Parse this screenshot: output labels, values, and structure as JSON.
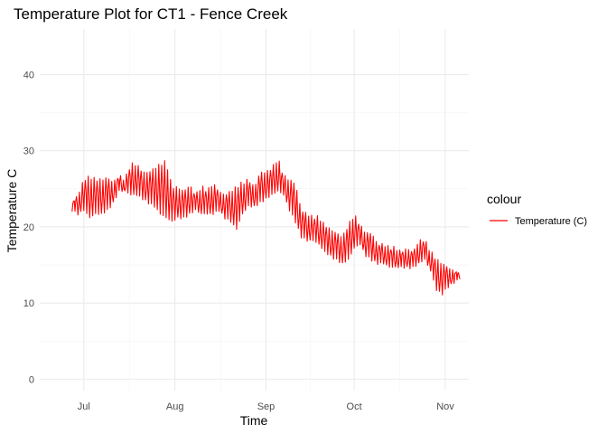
{
  "chart_data": {
    "type": "line",
    "title": "Temperature Plot for CT1 - Fence Creek",
    "xlabel": "Time",
    "ylabel": "Temperature C",
    "x_ticks": [
      {
        "date": "2021-07-01",
        "label": "Jul"
      },
      {
        "date": "2021-08-01",
        "label": "Aug"
      },
      {
        "date": "2021-09-01",
        "label": "Sep"
      },
      {
        "date": "2021-10-01",
        "label": "Oct"
      },
      {
        "date": "2021-11-01",
        "label": "Nov"
      }
    ],
    "xlim": [
      "2021-06-16",
      "2021-11-09"
    ],
    "y_ticks": [
      0,
      10,
      20,
      30,
      40
    ],
    "ylim": [
      -1.5,
      46
    ],
    "grid": true,
    "legend": {
      "title": "colour",
      "position": "right",
      "entries": [
        "Temperature (C)"
      ]
    },
    "series": [
      {
        "name": "Temperature (C)",
        "color": "#ff0000",
        "x": [
          "2021-06-27",
          "2021-06-29",
          "2021-07-01",
          "2021-07-03",
          "2021-07-05",
          "2021-07-07",
          "2021-07-09",
          "2021-07-11",
          "2021-07-13",
          "2021-07-15",
          "2021-07-17",
          "2021-07-19",
          "2021-07-21",
          "2021-07-23",
          "2021-07-25",
          "2021-07-27",
          "2021-07-29",
          "2021-07-31",
          "2021-08-02",
          "2021-08-04",
          "2021-08-06",
          "2021-08-08",
          "2021-08-10",
          "2021-08-12",
          "2021-08-14",
          "2021-08-16",
          "2021-08-18",
          "2021-08-20",
          "2021-08-22",
          "2021-08-24",
          "2021-08-26",
          "2021-08-28",
          "2021-08-30",
          "2021-09-01",
          "2021-09-03",
          "2021-09-05",
          "2021-09-07",
          "2021-09-09",
          "2021-09-11",
          "2021-09-13",
          "2021-09-15",
          "2021-09-17",
          "2021-09-19",
          "2021-09-21",
          "2021-09-23",
          "2021-09-25",
          "2021-09-27",
          "2021-09-29",
          "2021-10-01",
          "2021-10-03",
          "2021-10-05",
          "2021-10-07",
          "2021-10-09",
          "2021-10-11",
          "2021-10-13",
          "2021-10-15",
          "2021-10-17",
          "2021-10-19",
          "2021-10-21",
          "2021-10-23",
          "2021-10-25",
          "2021-10-27",
          "2021-10-29",
          "2021-10-31",
          "2021-11-02",
          "2021-11-04",
          "2021-11-06"
        ],
        "high": [
          23.5,
          24.5,
          26.5,
          26.8,
          26.5,
          26.5,
          26.8,
          26.2,
          27.0,
          26.5,
          28.5,
          28.5,
          27.5,
          27.5,
          28.0,
          28.5,
          28.8,
          25.5,
          25.5,
          25.0,
          25.8,
          24.5,
          25.5,
          25.0,
          26.0,
          25.0,
          24.5,
          25.0,
          25.5,
          26.0,
          26.5,
          25.5,
          27.5,
          27.5,
          28.0,
          29.2,
          27.0,
          26.5,
          26.0,
          22.5,
          22.0,
          21.5,
          21.5,
          20.5,
          20.0,
          19.5,
          19.0,
          20.5,
          21.8,
          20.5,
          19.5,
          19.5,
          18.0,
          18.0,
          17.5,
          17.5,
          17.0,
          17.5,
          17.0,
          18.5,
          18.5,
          17.0,
          16.0,
          15.5,
          15.0,
          14.5,
          14.0
        ],
        "low": [
          22.0,
          21.5,
          22.0,
          21.0,
          21.5,
          21.5,
          22.0,
          23.0,
          24.5,
          24.5,
          24.0,
          24.0,
          23.5,
          23.0,
          22.5,
          21.5,
          21.0,
          20.5,
          21.0,
          21.0,
          21.5,
          22.0,
          21.5,
          21.5,
          21.5,
          22.0,
          21.0,
          20.5,
          19.5,
          21.5,
          22.5,
          22.5,
          23.0,
          23.5,
          24.0,
          24.5,
          24.0,
          22.0,
          20.5,
          18.5,
          18.0,
          18.0,
          17.5,
          16.5,
          16.0,
          15.5,
          15.0,
          15.5,
          17.0,
          17.5,
          16.0,
          15.5,
          15.0,
          15.0,
          14.5,
          14.5,
          14.5,
          14.5,
          14.5,
          15.0,
          15.5,
          14.0,
          11.5,
          11.0,
          12.0,
          12.5,
          13.0
        ]
      }
    ]
  }
}
